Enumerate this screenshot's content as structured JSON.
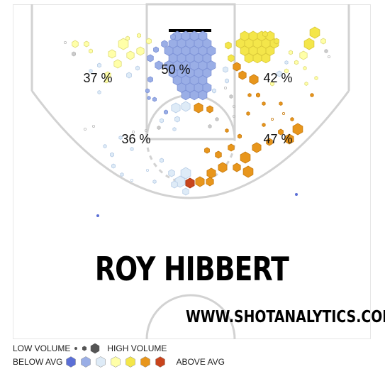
{
  "player": {
    "name": "ROY HIBBERT"
  },
  "website": "WWW.SHOTANALYTICS.COM",
  "legend": {
    "low_volume": "LOW VOLUME",
    "high_volume": "HIGH VOLUME",
    "below_avg": "BELOW AVG",
    "above_avg": "ABOVE AVG",
    "scale_colors": [
      "#5b6fd6",
      "#9aaee6",
      "#deebf7",
      "#ffffa8",
      "#f4e64a",
      "#e8961c",
      "#c8441c"
    ]
  },
  "chart_data": {
    "type": "shot-chart",
    "zones": [
      {
        "zone": "restricted-area",
        "fg_pct": "50 %"
      },
      {
        "zone": "left-wing-three",
        "fg_pct": "37 %"
      },
      {
        "zone": "right-wing-three",
        "fg_pct": "42 %"
      },
      {
        "zone": "left-midrange",
        "fg_pct": "36 %"
      },
      {
        "zone": "right-midrange",
        "fg_pct": "47 %"
      }
    ],
    "shot_clusters": [
      {
        "zone": "restricted-area",
        "tier": "below-avg",
        "volume": "high"
      },
      {
        "zone": "right-baseline-three",
        "tier": "above-avg-yellow",
        "volume": "high"
      },
      {
        "zone": "left-baseline-three",
        "tier": "light-yellow",
        "volume": "medium"
      },
      {
        "zone": "right-midrange",
        "tier": "above-avg-orange",
        "volume": "medium"
      },
      {
        "zone": "left-midrange",
        "tier": "near-avg",
        "volume": "low"
      }
    ]
  }
}
